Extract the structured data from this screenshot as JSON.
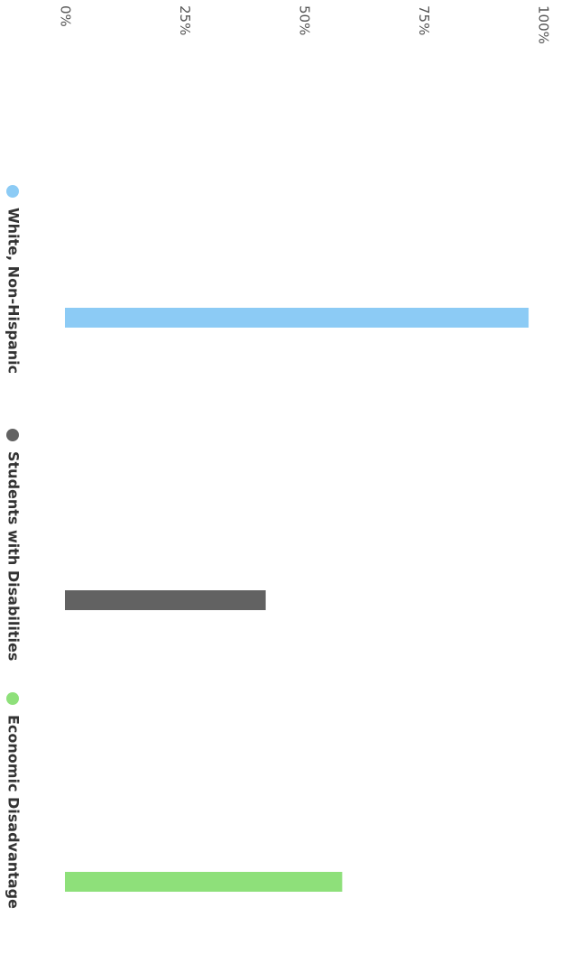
{
  "chart_data": {
    "type": "bar",
    "orientation": "horizontal",
    "series": [
      {
        "name": "White, Non-Hispanic",
        "color": "#8ccbf5",
        "values": [
          97
        ]
      },
      {
        "name": "Students with Disabilities",
        "color": "#626262",
        "values": [
          42
        ]
      },
      {
        "name": "Economic Disadvantage",
        "color": "#8ee07a",
        "values": [
          58
        ]
      }
    ],
    "xlim": [
      0,
      100
    ],
    "xticks": [
      {
        "value": 0,
        "label": "0%"
      },
      {
        "value": 25,
        "label": "25%"
      },
      {
        "value": 50,
        "label": "50%"
      },
      {
        "value": 75,
        "label": "75%"
      },
      {
        "value": 100,
        "label": "100%"
      }
    ],
    "legend": "left"
  }
}
